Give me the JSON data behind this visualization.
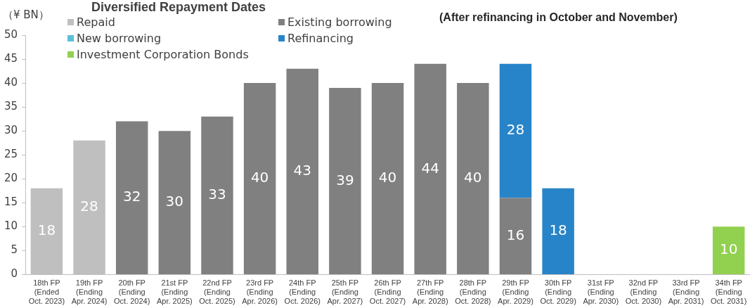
{
  "chart_data": {
    "type": "bar",
    "title": "Diversified Repayment Dates",
    "subtitle": "(After refinancing in October and November)",
    "ylabel": "（¥ BN）",
    "categories": [
      "18th FP (Ended Oct. 2023)",
      "19th FP (Ending Apr. 2024)",
      "20th FP (Ending Oct. 2024)",
      "21st FP (Ending Apr. 2025)",
      "22nd FP (Ending Oct. 2025)",
      "23rd FP (Ending Apr. 2026)",
      "24th FP (Ending Oct. 2026)",
      "25th FP (Ending Apr. 2027)",
      "26th FP (Ending Oct. 2027)",
      "27th FP (Ending Apr. 2028)",
      "28th FP (Ending Oct. 2028)",
      "29th FP (Ending Apr. 2029)",
      "30th FP (Ending Oct. 2029)",
      "31st FP (Ending Apr. 2030)",
      "32nd FP (Ending Oct. 2030)",
      "33rd FP (Ending Apr. 2031)",
      "34th FP (Ending Oct. 2031)"
    ],
    "series": [
      {
        "name": "Repaid",
        "color": "#bfbfbf",
        "values": [
          18,
          28,
          null,
          null,
          null,
          null,
          null,
          null,
          null,
          null,
          null,
          null,
          null,
          null,
          null,
          null,
          null
        ]
      },
      {
        "name": "Existing borrowing",
        "color": "#808080",
        "values": [
          null,
          null,
          32,
          30,
          33,
          40,
          43,
          39,
          40,
          44,
          40,
          16,
          null,
          null,
          null,
          null,
          null
        ]
      },
      {
        "name": "New borrowing",
        "color": "#5bc0d6",
        "values": [
          null,
          null,
          null,
          null,
          null,
          null,
          null,
          null,
          null,
          null,
          null,
          null,
          null,
          null,
          null,
          null,
          null
        ]
      },
      {
        "name": "Refinancing",
        "color": "#2884c8",
        "values": [
          null,
          null,
          null,
          null,
          null,
          null,
          null,
          null,
          null,
          null,
          null,
          28,
          18,
          null,
          null,
          null,
          null
        ]
      },
      {
        "name": "Investment Corporation Bonds",
        "color": "#92d050",
        "values": [
          null,
          null,
          null,
          null,
          null,
          null,
          null,
          null,
          null,
          null,
          null,
          null,
          null,
          null,
          null,
          null,
          10
        ]
      }
    ],
    "stacked": true,
    "ylim": [
      0,
      50
    ],
    "yticks": [
      0,
      5,
      10,
      15,
      20,
      25,
      30,
      35,
      40,
      45,
      50
    ],
    "grid": false,
    "legend": "top left",
    "data_labels": true
  }
}
